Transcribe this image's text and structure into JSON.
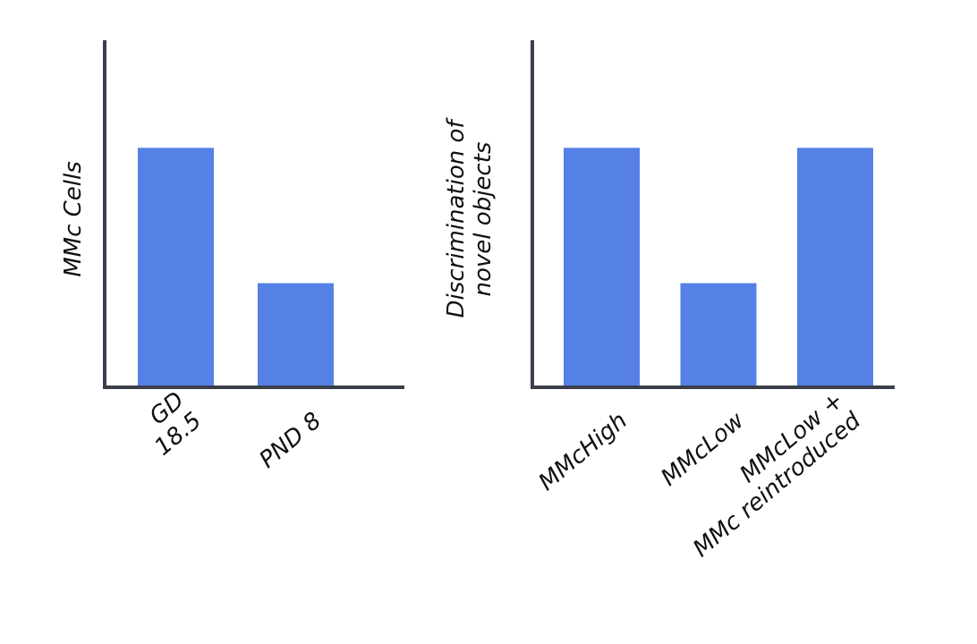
{
  "chart_data": [
    {
      "type": "bar",
      "ylabel": "MMc Cells",
      "categories": [
        "GD\n18.5",
        "PND 8"
      ],
      "values": [
        69,
        30
      ],
      "color": "#5580e6",
      "ylim": [
        0,
        100
      ]
    },
    {
      "type": "bar",
      "ylabel": "Discrimination of\nnovel objects",
      "categories": [
        "MMcHigh",
        "MMcLow",
        "MMcLow +\nMMc reintroduced"
      ],
      "values": [
        69,
        30,
        69
      ],
      "color": "#5580e6",
      "ylim": [
        0,
        100
      ]
    }
  ]
}
